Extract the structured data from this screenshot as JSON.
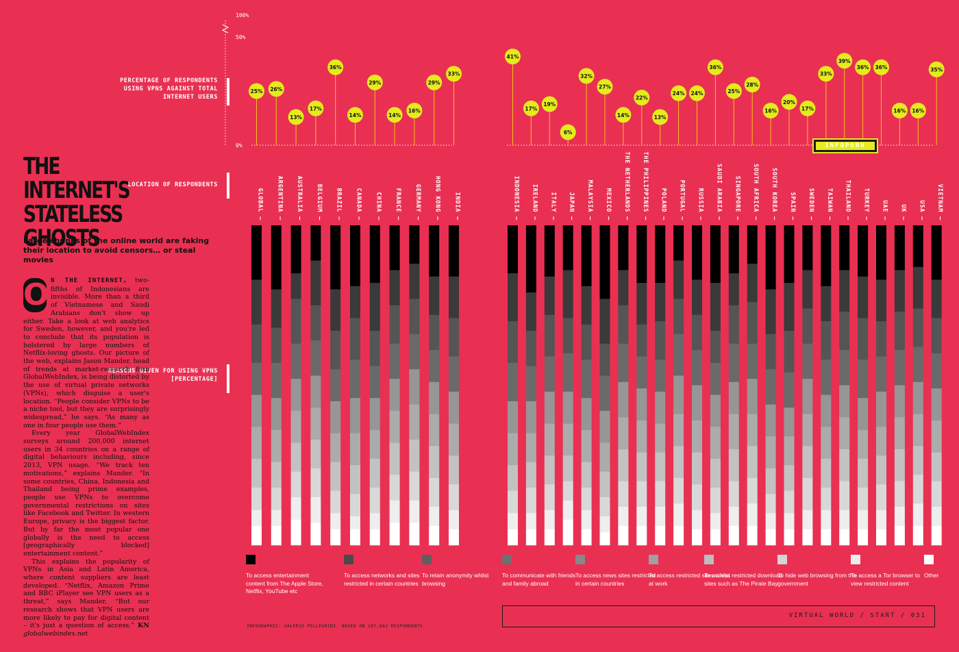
{
  "article": {
    "headline_line1": "The Internet's",
    "headline_line2": "Stateless Ghosts",
    "standfirst": "Large chunks of the online world are faking their location to avoid censors… or steal movies",
    "dropcap": "O",
    "leadin": "N THE INTERNET,",
    "p1_rest": " two-fifths of Indonesians are invisible. More than a third of Vietnamese and Saudi Arabians don't show up either. Take a look at web analytics for Sweden, however, and you're led to conclude that its population is bolstered by large numbers of Netflix-loving ghosts. Our picture of the web, explains Jason Mander, head of trends at market-research firm GlobalWebIndex, is being distorted by the use of virtual private networks (VPNs), which disguise a user's location. “People consider VPNs to be a niche tool, but they are surprisingly widespread,” he says. “As many as one in four people use them.”",
    "p2": "Every year GlobalWebIndex surveys around 200,000 internet users in 34 countries on a range of digital behaviours including, since 2013, VPN usage. “We track ten motivations,” explains Mander. “In some countries, China, Indonesia and Thailand being prime examples, people use VPNs to overcome governmental restrictions on sites like Facebook and Twitter. In western Europe, privacy is the biggest factor. But by far the most popular one globally is the need to access [geographically blocked] entertainment content.”",
    "p3": "This explains the popularity of VPNs in Asia and Latin America, where content suppliers are least developed. “Netflix, Amazon Prime and BBC iPlayer see VPN users as a threat,” says Mander. “But our research shows that VPN users are more likely to pay for digital content – it's just a question of access.”",
    "signoff": "KN",
    "signoff_url": "globalwebindex.net",
    "credit": "INFOGRAPHIC: VALERIO PELLEGRINI. BASED ON 197,662 RESPONDENTS"
  },
  "labels": {
    "pct_label": "Percentage of respondents using VPNs against total internet users",
    "location_label": "Location of respondents",
    "reasons_label": "Reasons given for using VPNs [percentage]",
    "badge": "INFOPORN",
    "footer": "VIRTUAL WORLD / START / 031"
  },
  "colors": {
    "background": "#E93052",
    "bubble": "#E6EB1E",
    "stem": "#F2C21A",
    "reasons": [
      "#000000",
      "#3a3a3a",
      "#555555",
      "#6a6a6a",
      "#808080",
      "#969696",
      "#ababab",
      "#c2c2c2",
      "#d8d8d8",
      "#eeeeee",
      "#ffffff"
    ]
  },
  "chart_data": {
    "type": "bar",
    "y_ticks": [
      "0%",
      "50%",
      "100%"
    ],
    "categories": [
      "Global",
      "Argentina",
      "Australia",
      "Belgium",
      "Brazil",
      "Canada",
      "China",
      "France",
      "Germany",
      "Hong Kong",
      "India",
      "Indonesia",
      "Ireland",
      "Italy",
      "Japan",
      "Malaysia",
      "Mexico",
      "The Netherlands",
      "The Philippines",
      "Poland",
      "Portugal",
      "Russia",
      "Saudi Arabia",
      "Singapore",
      "South Africa",
      "South Korea",
      "Spain",
      "Sweden",
      "Taiwan",
      "Thailand",
      "Turkey",
      "UAE",
      "UK",
      "USA",
      "Vietnam"
    ],
    "vpn_usage_pct": [
      25,
      26,
      13,
      17,
      36,
      14,
      29,
      14,
      16,
      29,
      33,
      41,
      17,
      19,
      6,
      32,
      27,
      14,
      22,
      13,
      24,
      24,
      36,
      25,
      28,
      16,
      20,
      17,
      33,
      39,
      36,
      36,
      16,
      16,
      35
    ],
    "vpn_usage_labels": [
      "25%",
      "26%",
      "13%",
      "17%",
      "36%",
      "14%",
      "29%",
      "14%",
      "16%",
      "29%",
      "33%",
      "41%",
      "17%",
      "19%",
      "6%",
      "32%",
      "27%",
      "14%",
      "22%",
      "13%",
      "24%",
      "24%",
      "36%",
      "25%",
      "28%",
      "16%",
      "20%",
      "17%",
      "33%",
      "39%",
      "36%",
      "36%",
      "16%",
      "16%",
      "35%"
    ],
    "reasons": [
      "To access entertainment content from The Apple Store, Netflix, YouTube etc",
      "To access networks and sites restricted in certain countries",
      "To retain anonymity whilst browsing",
      "To communicate with friends and family abroad",
      "To access news sites restricted in certain countries",
      "To access restricted sites whilst at work",
      "To access restricted download sites such as The Pirate Bay",
      "To hide web browsing from the government",
      "To access a Tor browser to view restricted content",
      "Other"
    ],
    "reason_shares_pct": [
      [
        17,
        14,
        12,
        10,
        10,
        10,
        9,
        7,
        5,
        6
      ],
      [
        20,
        12,
        11,
        11,
        10,
        10,
        8,
        7,
        5,
        6
      ],
      [
        15,
        8,
        14,
        11,
        10,
        10,
        9,
        8,
        7,
        8
      ],
      [
        11,
        14,
        11,
        11,
        10,
        10,
        9,
        9,
        8,
        7
      ],
      [
        20,
        13,
        12,
        10,
        10,
        9,
        9,
        7,
        5,
        5
      ],
      [
        19,
        10,
        13,
        12,
        11,
        10,
        9,
        7,
        4,
        5
      ],
      [
        18,
        15,
        11,
        10,
        10,
        9,
        9,
        8,
        5,
        5
      ],
      [
        14,
        11,
        12,
        11,
        10,
        10,
        10,
        8,
        7,
        7
      ],
      [
        12,
        11,
        11,
        11,
        11,
        11,
        10,
        9,
        7,
        7
      ],
      [
        16,
        12,
        11,
        10,
        10,
        10,
        10,
        9,
        6,
        6
      ],
      [
        16,
        13,
        12,
        11,
        10,
        10,
        9,
        8,
        6,
        5
      ],
      [
        15,
        15,
        13,
        12,
        10,
        10,
        8,
        7,
        5,
        5
      ],
      [
        21,
        12,
        11,
        11,
        10,
        9,
        8,
        8,
        5,
        5
      ],
      [
        16,
        12,
        13,
        11,
        10,
        10,
        9,
        8,
        6,
        5
      ],
      [
        14,
        15,
        11,
        12,
        10,
        10,
        8,
        6,
        6,
        8
      ],
      [
        19,
        12,
        11,
        12,
        10,
        10,
        8,
        7,
        6,
        5
      ],
      [
        23,
        14,
        10,
        11,
        10,
        9,
        8,
        6,
        5,
        4
      ],
      [
        14,
        11,
        12,
        12,
        11,
        10,
        10,
        8,
        6,
        6
      ],
      [
        18,
        13,
        10,
        10,
        10,
        10,
        9,
        8,
        6,
        6
      ],
      [
        18,
        12,
        12,
        10,
        10,
        9,
        9,
        8,
        6,
        6
      ],
      [
        11,
        12,
        11,
        13,
        12,
        10,
        10,
        8,
        7,
        6
      ],
      [
        17,
        11,
        11,
        11,
        11,
        10,
        10,
        8,
        6,
        5
      ],
      [
        18,
        15,
        10,
        10,
        10,
        10,
        9,
        8,
        5,
        5
      ],
      [
        15,
        10,
        12,
        12,
        10,
        11,
        10,
        8,
        6,
        6
      ],
      [
        12,
        12,
        13,
        11,
        11,
        10,
        10,
        8,
        7,
        6
      ],
      [
        20,
        14,
        11,
        11,
        10,
        10,
        8,
        6,
        5,
        5
      ],
      [
        18,
        15,
        13,
        11,
        9,
        9,
        8,
        7,
        5,
        5
      ],
      [
        14,
        12,
        11,
        11,
        11,
        10,
        10,
        10,
        6,
        5
      ],
      [
        19,
        11,
        12,
        11,
        10,
        10,
        9,
        7,
        6,
        5
      ],
      [
        14,
        13,
        12,
        11,
        10,
        10,
        10,
        9,
        6,
        5
      ],
      [
        16,
        13,
        13,
        12,
        10,
        9,
        9,
        7,
        6,
        5
      ],
      [
        17,
        13,
        11,
        11,
        11,
        9,
        9,
        8,
        6,
        5
      ],
      [
        14,
        13,
        12,
        11,
        10,
        10,
        10,
        8,
        6,
        6
      ],
      [
        13,
        13,
        12,
        11,
        10,
        10,
        9,
        9,
        7,
        6
      ],
      [
        17,
        12,
        11,
        11,
        10,
        10,
        9,
        8,
        6,
        6
      ]
    ]
  }
}
